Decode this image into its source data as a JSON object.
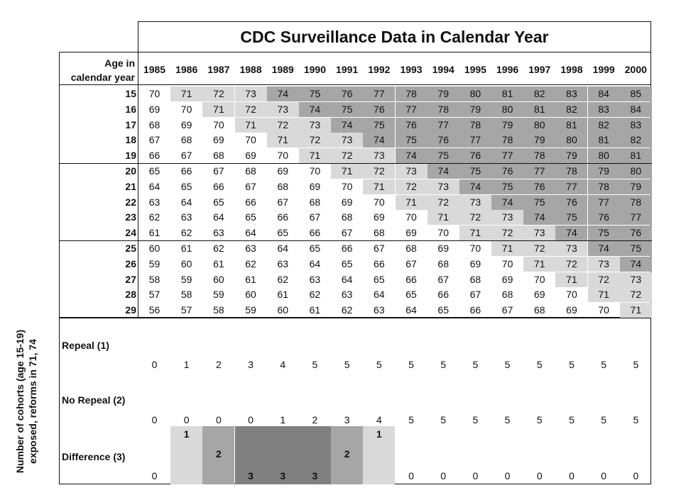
{
  "title": "CDC Surveillance Data in Calendar Year",
  "age_header": [
    "Age in",
    "calendar year"
  ],
  "years": [
    "1985",
    "1986",
    "1987",
    "1988",
    "1989",
    "1990",
    "1991",
    "1992",
    "1993",
    "1994",
    "1995",
    "1996",
    "1997",
    "1998",
    "1999",
    "2000"
  ],
  "ages": [
    "15",
    "16",
    "17",
    "18",
    "19",
    "20",
    "21",
    "22",
    "23",
    "24",
    "25",
    "26",
    "27",
    "28",
    "29"
  ],
  "birth_years": [
    [
      "70",
      "71",
      "72",
      "73",
      "74",
      "75",
      "76",
      "77",
      "78",
      "79",
      "80",
      "81",
      "82",
      "83",
      "84",
      "85"
    ],
    [
      "69",
      "70",
      "71",
      "72",
      "73",
      "74",
      "75",
      "76",
      "77",
      "78",
      "79",
      "80",
      "81",
      "82",
      "83",
      "84"
    ],
    [
      "68",
      "69",
      "70",
      "71",
      "72",
      "73",
      "74",
      "75",
      "76",
      "77",
      "78",
      "79",
      "80",
      "81",
      "82",
      "83"
    ],
    [
      "67",
      "68",
      "69",
      "70",
      "71",
      "72",
      "73",
      "74",
      "75",
      "76",
      "77",
      "78",
      "79",
      "80",
      "81",
      "82"
    ],
    [
      "66",
      "67",
      "68",
      "69",
      "70",
      "71",
      "72",
      "73",
      "74",
      "75",
      "76",
      "77",
      "78",
      "79",
      "80",
      "81"
    ],
    [
      "65",
      "66",
      "67",
      "68",
      "69",
      "70",
      "71",
      "72",
      "73",
      "74",
      "75",
      "76",
      "77",
      "78",
      "79",
      "80"
    ],
    [
      "64",
      "65",
      "66",
      "67",
      "68",
      "69",
      "70",
      "71",
      "72",
      "73",
      "74",
      "75",
      "76",
      "77",
      "78",
      "79"
    ],
    [
      "63",
      "64",
      "65",
      "66",
      "67",
      "68",
      "69",
      "70",
      "71",
      "72",
      "73",
      "74",
      "75",
      "76",
      "77",
      "78"
    ],
    [
      "62",
      "63",
      "64",
      "65",
      "66",
      "67",
      "68",
      "69",
      "70",
      "71",
      "72",
      "73",
      "74",
      "75",
      "76",
      "77"
    ],
    [
      "61",
      "62",
      "63",
      "64",
      "65",
      "66",
      "67",
      "68",
      "69",
      "70",
      "71",
      "72",
      "73",
      "74",
      "75",
      "76"
    ],
    [
      "60",
      "61",
      "62",
      "63",
      "64",
      "65",
      "66",
      "67",
      "68",
      "69",
      "70",
      "71",
      "72",
      "73",
      "74",
      "75"
    ],
    [
      "59",
      "60",
      "61",
      "62",
      "63",
      "64",
      "65",
      "66",
      "67",
      "68",
      "69",
      "70",
      "71",
      "72",
      "73",
      "74"
    ],
    [
      "58",
      "59",
      "60",
      "61",
      "62",
      "63",
      "64",
      "65",
      "66",
      "67",
      "68",
      "69",
      "70",
      "71",
      "72",
      "73"
    ],
    [
      "57",
      "58",
      "59",
      "60",
      "61",
      "62",
      "63",
      "64",
      "65",
      "66",
      "67",
      "68",
      "69",
      "70",
      "71",
      "72"
    ],
    [
      "56",
      "57",
      "58",
      "59",
      "60",
      "61",
      "62",
      "63",
      "64",
      "65",
      "66",
      "67",
      "68",
      "69",
      "70",
      "71"
    ]
  ],
  "shading": {
    "light": "#d9d9d9",
    "medium": "#a6a6a6",
    "dark": "#808080"
  },
  "repeal": {
    "label": "Repeal (1)",
    "values": [
      "0",
      "1",
      "2",
      "3",
      "4",
      "5",
      "5",
      "5",
      "5",
      "5",
      "5",
      "5",
      "5",
      "5",
      "5",
      "5"
    ]
  },
  "no_repeal": {
    "label": "No Repeal (2)",
    "values": [
      "0",
      "0",
      "0",
      "0",
      "1",
      "2",
      "3",
      "4",
      "5",
      "5",
      "5",
      "5",
      "5",
      "5",
      "5",
      "5"
    ]
  },
  "difference": {
    "label": "Difference (3)",
    "values": [
      "0",
      "1",
      "2",
      "3",
      "3",
      "3",
      "2",
      "1",
      "0",
      "0",
      "0",
      "0",
      "0",
      "0",
      "0",
      "0"
    ]
  },
  "side_label": [
    "Number of cohorts (age 15-19)",
    "exposed, reforms in 71, 74"
  ]
}
